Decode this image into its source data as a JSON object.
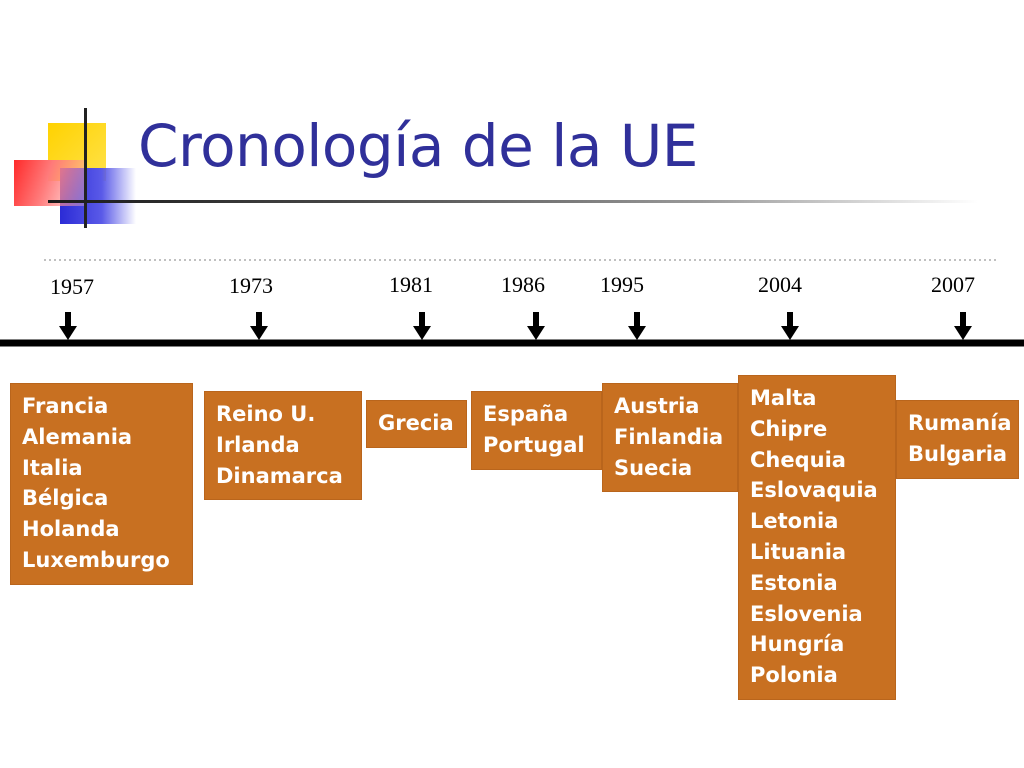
{
  "title": "Cronología de la UE",
  "colors": {
    "title": "#30309a",
    "box_fill": "#c87021",
    "box_text": "#ffffff",
    "timeline": "#000000"
  },
  "chart_data": {
    "type": "timeline",
    "title": "Cronología de la UE",
    "events": [
      {
        "year": "1957",
        "countries": [
          "Francia",
          "Alemania",
          "Italia",
          "Bélgica",
          "Holanda",
          "Luxemburgo"
        ]
      },
      {
        "year": "1973",
        "countries": [
          "Reino U.",
          "Irlanda",
          "Dinamarca"
        ]
      },
      {
        "year": "1981",
        "countries": [
          "Grecia"
        ]
      },
      {
        "year": "1986",
        "countries": [
          "España",
          "Portugal"
        ]
      },
      {
        "year": "1995",
        "countries": [
          "Austria",
          "Finlandia",
          "Suecia"
        ]
      },
      {
        "year": "2004",
        "countries": [
          "Malta",
          "Chipre",
          "Chequia",
          "Eslovaquia",
          "Letonia",
          "Lituania",
          "Estonia",
          "Eslovenia",
          "Hungría",
          "Polonia"
        ]
      },
      {
        "year": "2007",
        "countries": [
          "Rumanía",
          "Bulgaria"
        ]
      }
    ]
  }
}
